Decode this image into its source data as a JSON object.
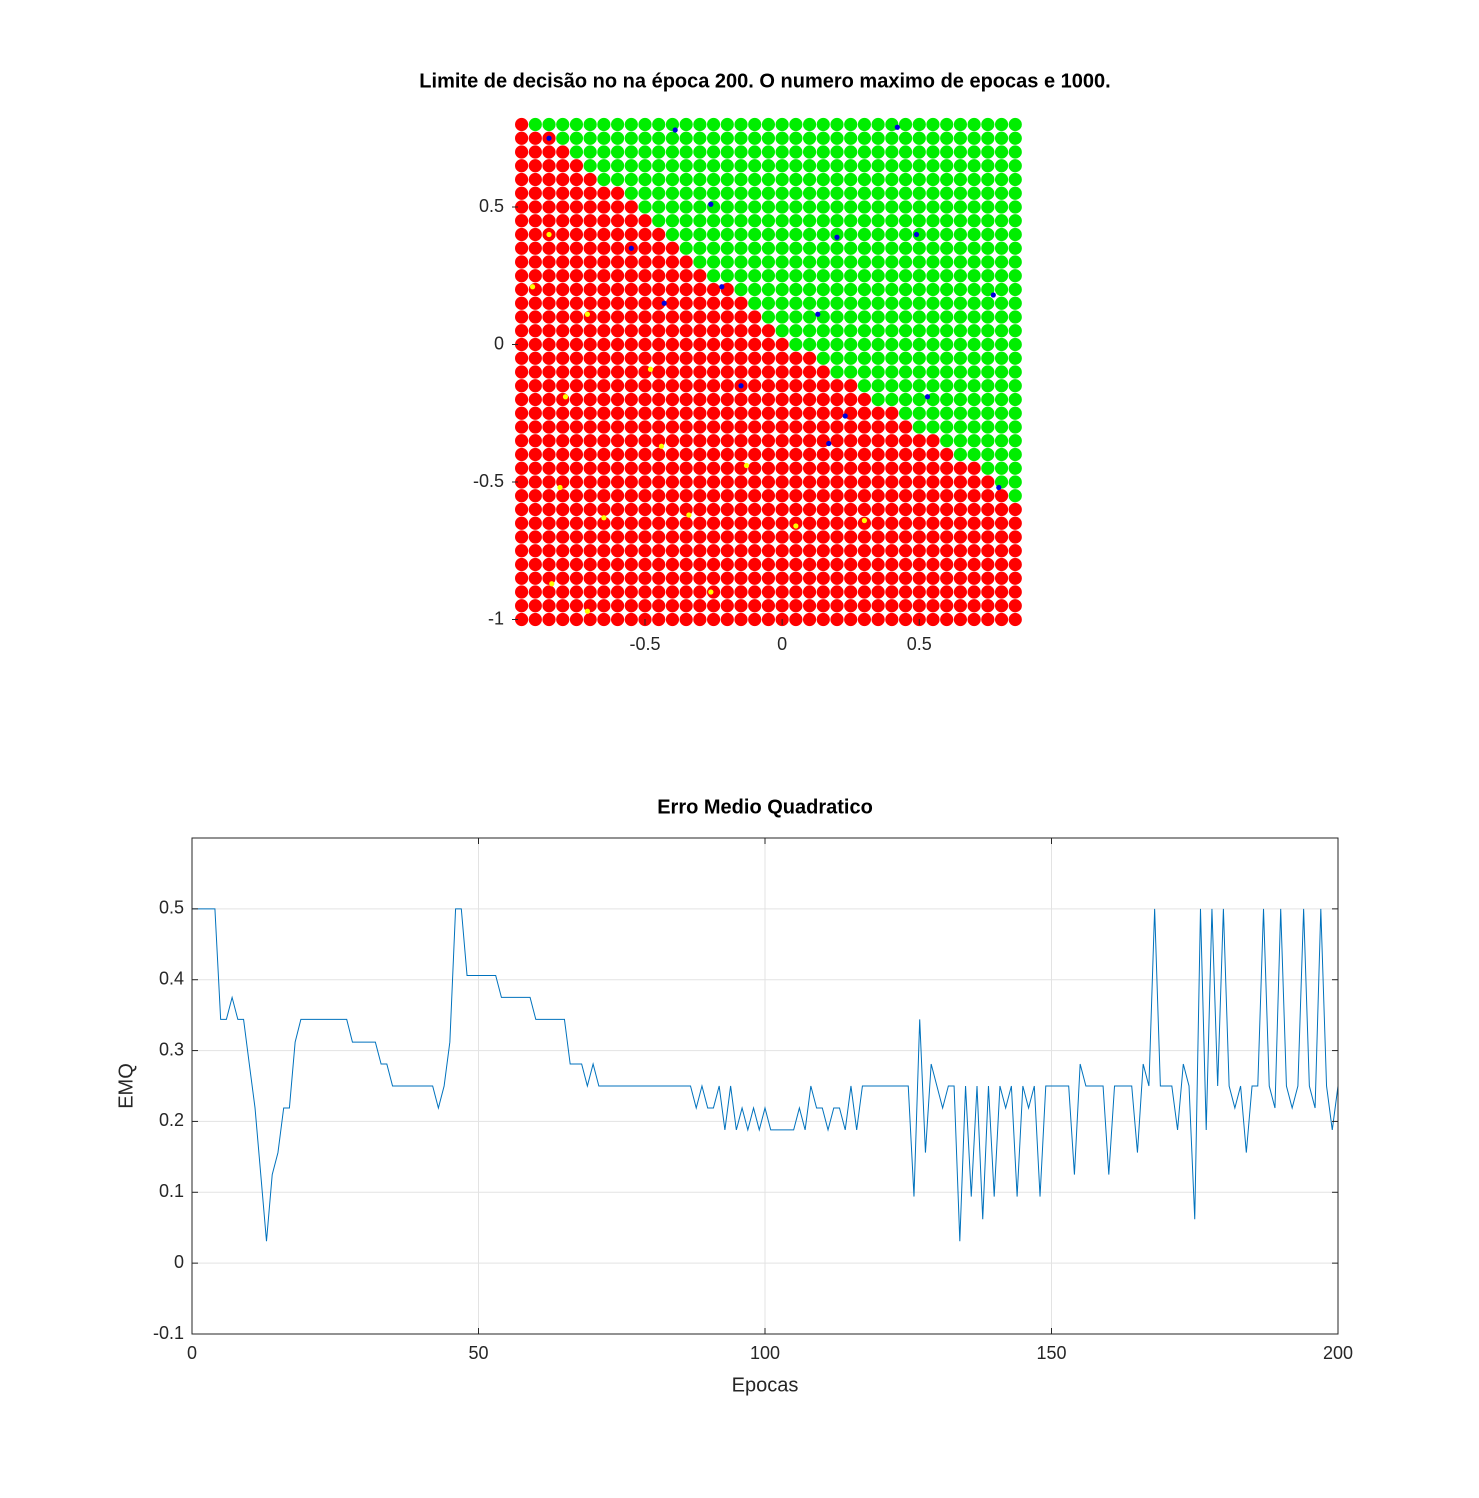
{
  "chart_data": [
    {
      "type": "scatter",
      "title": "Limite de decisão no na época 200. O numero maximo de epocas e 1000.",
      "xlim": [
        -0.985,
        0.86
      ],
      "ylim": [
        -1.02,
        0.82
      ],
      "xticks": [
        -0.5,
        0,
        0.5
      ],
      "yticks": [
        -1,
        -0.5,
        0,
        0.5
      ],
      "grid_x": [
        -0.95,
        -0.9,
        -0.85,
        -0.8,
        -0.75,
        -0.7,
        -0.65,
        -0.6,
        -0.55,
        -0.5,
        -0.45,
        -0.4,
        -0.35,
        -0.3,
        -0.25,
        -0.2,
        -0.15,
        -0.1,
        -0.05,
        0,
        0.05,
        0.1,
        0.15,
        0.2,
        0.25,
        0.3,
        0.35,
        0.4,
        0.45,
        0.5,
        0.55,
        0.6,
        0.65,
        0.7,
        0.75,
        0.8,
        0.85
      ],
      "grid_y": [
        0.8,
        0.75,
        0.7,
        0.65,
        0.6,
        0.55,
        0.5,
        0.45,
        0.4,
        0.35,
        0.3,
        0.25,
        0.2,
        0.15,
        0.1,
        0.05,
        0,
        -0.05,
        -0.1,
        -0.15,
        -0.2,
        -0.25,
        -0.3,
        -0.35,
        -0.4,
        -0.45,
        -0.5,
        -0.55,
        -0.6,
        -0.65,
        -0.7,
        -0.75,
        -0.8,
        -0.85,
        -0.9,
        -0.95,
        -1
      ],
      "red_count": [
        1,
        3,
        4,
        5,
        6,
        8,
        9,
        10,
        11,
        12,
        13,
        14,
        16,
        17,
        18,
        19,
        20,
        22,
        23,
        25,
        26,
        28,
        29,
        31,
        32,
        34,
        35,
        36,
        37,
        37,
        37,
        37,
        37,
        37,
        37,
        37,
        37
      ],
      "grid_colors": [
        "#ff0000",
        "#00ee00"
      ],
      "series": [
        {
          "color": "#0000dd",
          "x": [
            -0.85,
            -0.39,
            0.42,
            -0.26,
            0.2,
            0.49,
            -0.55,
            -0.22,
            0.77,
            -0.43,
            0.13,
            -0.15,
            0.53,
            0.23,
            0.17,
            0.79
          ],
          "y": [
            0.75,
            0.78,
            0.79,
            0.51,
            0.39,
            0.4,
            0.35,
            0.21,
            0.18,
            0.15,
            0.11,
            -0.15,
            -0.19,
            -0.26,
            -0.36,
            -0.52
          ]
        },
        {
          "color": "#ffff00",
          "x": [
            -0.85,
            -0.91,
            -0.71,
            -0.48,
            -0.79,
            -0.44,
            -0.13,
            -0.81,
            -0.65,
            -0.34,
            0.05,
            0.3,
            -0.84,
            -0.26,
            -0.71
          ],
          "y": [
            0.4,
            0.21,
            0.11,
            -0.09,
            -0.19,
            -0.37,
            -0.44,
            -0.52,
            -0.63,
            -0.62,
            -0.66,
            -0.64,
            -0.87,
            -0.9,
            -0.97
          ]
        }
      ]
    },
    {
      "type": "line",
      "title": "Erro Medio Quadratico",
      "xlabel": "Epocas",
      "ylabel": "EMQ",
      "xlim": [
        0,
        200
      ],
      "ylim": [
        -0.1,
        0.6
      ],
      "xticks": [
        0,
        50,
        100,
        150,
        200
      ],
      "yticks": [
        -0.1,
        0,
        0.1,
        0.2,
        0.3,
        0.4,
        0.5
      ],
      "grid": true,
      "x": [
        0,
        1,
        2,
        3,
        4,
        5,
        6,
        7,
        8,
        9,
        10,
        11,
        12,
        13,
        14,
        15,
        16,
        17,
        18,
        19,
        20,
        21,
        22,
        23,
        24,
        25,
        26,
        27,
        28,
        29,
        30,
        31,
        32,
        33,
        34,
        35,
        36,
        37,
        38,
        39,
        40,
        41,
        42,
        43,
        44,
        45,
        46,
        47,
        48,
        49,
        50,
        51,
        52,
        53,
        54,
        55,
        56,
        57,
        58,
        59,
        60,
        61,
        62,
        63,
        64,
        65,
        66,
        67,
        68,
        69,
        70,
        71,
        72,
        73,
        74,
        75,
        76,
        77,
        78,
        79,
        80,
        81,
        82,
        83,
        84,
        85,
        86,
        87,
        88,
        89,
        90,
        91,
        92,
        93,
        94,
        95,
        96,
        97,
        98,
        99,
        100,
        101,
        102,
        103,
        104,
        105,
        106,
        107,
        108,
        109,
        110,
        111,
        112,
        113,
        114,
        115,
        116,
        117,
        118,
        119,
        120,
        121,
        122,
        123,
        124,
        125,
        126,
        127,
        128,
        129,
        130,
        131,
        132,
        133,
        134,
        135,
        136,
        137,
        138,
        139,
        140,
        141,
        142,
        143,
        144,
        145,
        146,
        147,
        148,
        149,
        150,
        151,
        152,
        153,
        154,
        155,
        156,
        157,
        158,
        159,
        160,
        161,
        162,
        163,
        164,
        165,
        166,
        167,
        168,
        169,
        170,
        171,
        172,
        173,
        174,
        175,
        176,
        177,
        178,
        179,
        180,
        181,
        182,
        183,
        184,
        185,
        186,
        187,
        188,
        189,
        190,
        191,
        192,
        193,
        194,
        195,
        196,
        197,
        198,
        199,
        200
      ],
      "series": [
        {
          "color": "#0072bd",
          "values": [
            0.5,
            0.5,
            0.5,
            0.5,
            0.5,
            0.344,
            0.344,
            0.375,
            0.344,
            0.344,
            0.281,
            0.219,
            0.125,
            0.031,
            0.125,
            0.156,
            0.219,
            0.219,
            0.312,
            0.344,
            0.344,
            0.344,
            0.344,
            0.344,
            0.344,
            0.344,
            0.344,
            0.344,
            0.312,
            0.312,
            0.312,
            0.312,
            0.312,
            0.281,
            0.281,
            0.25,
            0.25,
            0.25,
            0.25,
            0.25,
            0.25,
            0.25,
            0.25,
            0.219,
            0.25,
            0.312,
            0.5,
            0.5,
            0.406,
            0.406,
            0.406,
            0.406,
            0.406,
            0.406,
            0.375,
            0.375,
            0.375,
            0.375,
            0.375,
            0.375,
            0.344,
            0.344,
            0.344,
            0.344,
            0.344,
            0.344,
            0.281,
            0.281,
            0.281,
            0.25,
            0.281,
            0.25,
            0.25,
            0.25,
            0.25,
            0.25,
            0.25,
            0.25,
            0.25,
            0.25,
            0.25,
            0.25,
            0.25,
            0.25,
            0.25,
            0.25,
            0.25,
            0.25,
            0.219,
            0.25,
            0.219,
            0.219,
            0.25,
            0.188,
            0.25,
            0.188,
            0.219,
            0.188,
            0.219,
            0.188,
            0.219,
            0.188,
            0.188,
            0.188,
            0.188,
            0.188,
            0.219,
            0.188,
            0.25,
            0.219,
            0.219,
            0.188,
            0.219,
            0.219,
            0.188,
            0.25,
            0.188,
            0.25,
            0.25,
            0.25,
            0.25,
            0.25,
            0.25,
            0.25,
            0.25,
            0.25,
            0.094,
            0.344,
            0.156,
            0.281,
            0.25,
            0.219,
            0.25,
            0.25,
            0.031,
            0.25,
            0.094,
            0.25,
            0.062,
            0.25,
            0.094,
            0.25,
            0.219,
            0.25,
            0.094,
            0.25,
            0.219,
            0.25,
            0.094,
            0.25,
            0.25,
            0.25,
            0.25,
            0.25,
            0.125,
            0.281,
            0.25,
            0.25,
            0.25,
            0.25,
            0.125,
            0.25,
            0.25,
            0.25,
            0.25,
            0.156,
            0.281,
            0.25,
            0.5,
            0.25,
            0.25,
            0.25,
            0.188,
            0.281,
            0.25,
            0.062,
            0.5,
            0.188,
            0.5,
            0.25,
            0.5,
            0.25,
            0.219,
            0.25,
            0.156,
            0.25,
            0.25,
            0.5,
            0.25,
            0.219,
            0.5,
            0.25,
            0.219,
            0.25,
            0.5,
            0.25,
            0.219,
            0.5,
            0.25,
            0.188,
            0.25
          ]
        }
      ]
    }
  ]
}
